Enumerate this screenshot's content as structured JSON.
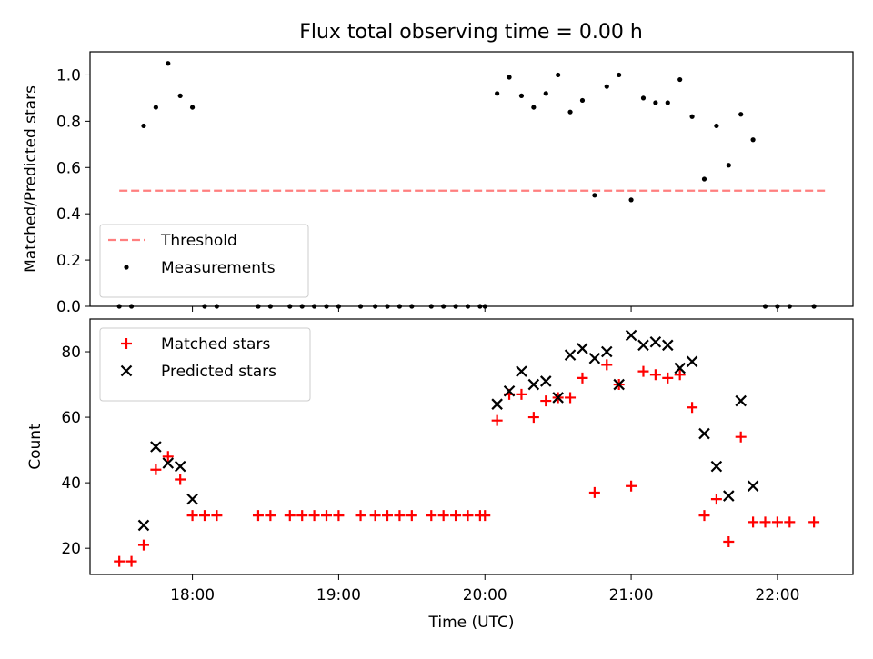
{
  "title": "Flux total observing time = 0.00 h",
  "colors": {
    "threshold": "#ff7f7f",
    "measurements": "#000000",
    "matched": "#ff0000",
    "predicted": "#000000"
  },
  "chart_data": [
    {
      "type": "scatter",
      "ylabel": "Matched/Predicted stars",
      "xlim": [
        "17:18",
        "22:31"
      ],
      "ylim": [
        0,
        1.1
      ],
      "y_ticks": [
        "0.0",
        "0.2",
        "0.4",
        "0.6",
        "0.8",
        "1.0"
      ],
      "x_ticks": [
        "18:00",
        "19:00",
        "20:00",
        "21:00",
        "22:00"
      ],
      "x_tick_labels_shown": false,
      "legend_position": "lower-left",
      "threshold": {
        "name": "Threshold",
        "value": 0.5,
        "x_range": [
          "17:30",
          "22:20"
        ],
        "style": "dashed"
      },
      "series": [
        {
          "name": "Measurements",
          "marker": "dot",
          "points": [
            [
              "17:30",
              0.0
            ],
            [
              "17:35",
              0.0
            ],
            [
              "17:40",
              0.78
            ],
            [
              "17:45",
              0.86
            ],
            [
              "17:50",
              1.05
            ],
            [
              "17:55",
              0.91
            ],
            [
              "18:00",
              0.86
            ],
            [
              "18:05",
              0.0
            ],
            [
              "18:10",
              0.0
            ],
            [
              "18:27",
              0.0
            ],
            [
              "18:32",
              0.0
            ],
            [
              "18:40",
              0.0
            ],
            [
              "18:45",
              0.0
            ],
            [
              "18:50",
              0.0
            ],
            [
              "18:55",
              0.0
            ],
            [
              "19:00",
              0.0
            ],
            [
              "19:09",
              0.0
            ],
            [
              "19:15",
              0.0
            ],
            [
              "19:20",
              0.0
            ],
            [
              "19:25",
              0.0
            ],
            [
              "19:30",
              0.0
            ],
            [
              "19:38",
              0.0
            ],
            [
              "19:43",
              0.0
            ],
            [
              "19:48",
              0.0
            ],
            [
              "19:53",
              0.0
            ],
            [
              "19:58",
              0.0
            ],
            [
              "20:00",
              0.0
            ],
            [
              "20:05",
              0.92
            ],
            [
              "20:10",
              0.99
            ],
            [
              "20:15",
              0.91
            ],
            [
              "20:20",
              0.86
            ],
            [
              "20:25",
              0.92
            ],
            [
              "20:30",
              1.0
            ],
            [
              "20:35",
              0.84
            ],
            [
              "20:40",
              0.89
            ],
            [
              "20:45",
              0.48
            ],
            [
              "20:50",
              0.95
            ],
            [
              "20:55",
              1.0
            ],
            [
              "21:00",
              0.46
            ],
            [
              "21:05",
              0.9
            ],
            [
              "21:10",
              0.88
            ],
            [
              "21:15",
              0.88
            ],
            [
              "21:20",
              0.98
            ],
            [
              "21:25",
              0.82
            ],
            [
              "21:30",
              0.55
            ],
            [
              "21:35",
              0.78
            ],
            [
              "21:40",
              0.61
            ],
            [
              "21:45",
              0.83
            ],
            [
              "21:50",
              0.72
            ],
            [
              "21:55",
              0.0
            ],
            [
              "22:00",
              0.0
            ],
            [
              "22:05",
              0.0
            ],
            [
              "22:15",
              0.0
            ]
          ]
        }
      ]
    },
    {
      "type": "scatter",
      "xlabel": "Time (UTC)",
      "ylabel": "Count",
      "xlim": [
        "17:18",
        "22:31"
      ],
      "ylim": [
        12,
        90
      ],
      "y_ticks": [
        "20",
        "40",
        "60",
        "80"
      ],
      "x_ticks": [
        "18:00",
        "19:00",
        "20:00",
        "21:00",
        "22:00"
      ],
      "legend_position": "upper-left",
      "series": [
        {
          "name": "Matched stars",
          "marker": "plus",
          "points": [
            [
              "17:30",
              16
            ],
            [
              "17:35",
              16
            ],
            [
              "17:40",
              21
            ],
            [
              "17:45",
              44
            ],
            [
              "17:50",
              48
            ],
            [
              "17:55",
              41
            ],
            [
              "18:00",
              30
            ],
            [
              "18:05",
              30
            ],
            [
              "18:10",
              30
            ],
            [
              "18:27",
              30
            ],
            [
              "18:32",
              30
            ],
            [
              "18:40",
              30
            ],
            [
              "18:45",
              30
            ],
            [
              "18:50",
              30
            ],
            [
              "18:55",
              30
            ],
            [
              "19:00",
              30
            ],
            [
              "19:09",
              30
            ],
            [
              "19:15",
              30
            ],
            [
              "19:20",
              30
            ],
            [
              "19:25",
              30
            ],
            [
              "19:30",
              30
            ],
            [
              "19:38",
              30
            ],
            [
              "19:43",
              30
            ],
            [
              "19:48",
              30
            ],
            [
              "19:53",
              30
            ],
            [
              "19:58",
              30
            ],
            [
              "20:00",
              30
            ],
            [
              "20:05",
              59
            ],
            [
              "20:10",
              67
            ],
            [
              "20:15",
              67
            ],
            [
              "20:20",
              60
            ],
            [
              "20:25",
              65
            ],
            [
              "20:30",
              66
            ],
            [
              "20:35",
              66
            ],
            [
              "20:40",
              72
            ],
            [
              "20:45",
              37
            ],
            [
              "20:50",
              76
            ],
            [
              "20:55",
              70
            ],
            [
              "21:00",
              39
            ],
            [
              "21:05",
              74
            ],
            [
              "21:10",
              73
            ],
            [
              "21:15",
              72
            ],
            [
              "21:20",
              73
            ],
            [
              "21:25",
              63
            ],
            [
              "21:30",
              30
            ],
            [
              "21:35",
              35
            ],
            [
              "21:40",
              22
            ],
            [
              "21:45",
              54
            ],
            [
              "21:50",
              28
            ],
            [
              "21:55",
              28
            ],
            [
              "22:00",
              28
            ],
            [
              "22:05",
              28
            ],
            [
              "22:15",
              28
            ]
          ]
        },
        {
          "name": "Predicted stars",
          "marker": "x",
          "points": [
            [
              "17:40",
              27
            ],
            [
              "17:45",
              51
            ],
            [
              "17:50",
              46
            ],
            [
              "17:55",
              45
            ],
            [
              "18:00",
              35
            ],
            [
              "20:05",
              64
            ],
            [
              "20:10",
              68
            ],
            [
              "20:15",
              74
            ],
            [
              "20:20",
              70
            ],
            [
              "20:25",
              71
            ],
            [
              "20:30",
              66
            ],
            [
              "20:35",
              79
            ],
            [
              "20:40",
              81
            ],
            [
              "20:45",
              78
            ],
            [
              "20:50",
              80
            ],
            [
              "20:55",
              70
            ],
            [
              "21:00",
              85
            ],
            [
              "21:05",
              82
            ],
            [
              "21:10",
              83
            ],
            [
              "21:15",
              82
            ],
            [
              "21:20",
              75
            ],
            [
              "21:25",
              77
            ],
            [
              "21:30",
              55
            ],
            [
              "21:35",
              45
            ],
            [
              "21:40",
              36
            ],
            [
              "21:45",
              65
            ],
            [
              "21:50",
              39
            ]
          ]
        }
      ]
    }
  ]
}
